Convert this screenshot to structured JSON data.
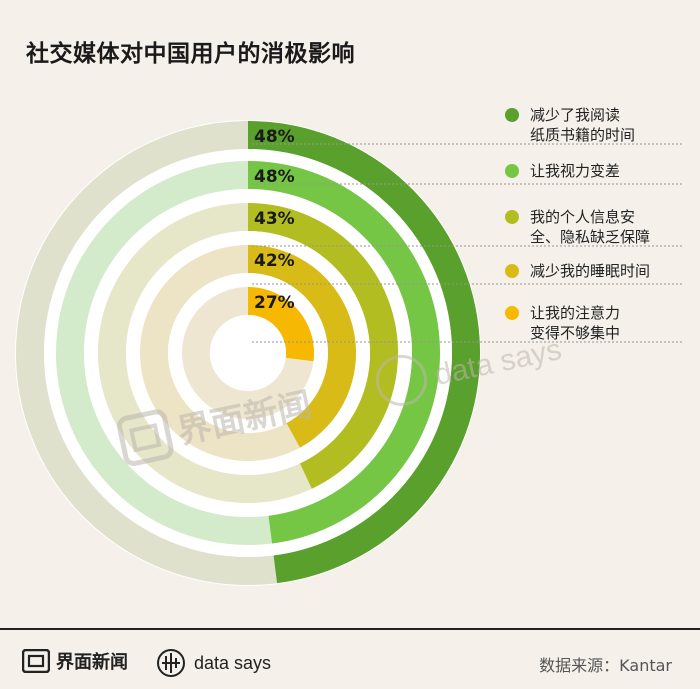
{
  "title": "社交媒体对中国用户的消极影响",
  "chart_data": {
    "type": "radial-bar",
    "unit": "%",
    "series": [
      {
        "label_lines": [
          "减少了我阅读",
          "纸质书籍的时间"
        ],
        "value": 48,
        "label": "48%",
        "color": "#5aa02c",
        "light": "#dfe1cc"
      },
      {
        "label_lines": [
          "让我视力变差"
        ],
        "value": 48,
        "label": "48%",
        "color": "#76c645",
        "light": "#d3eacb"
      },
      {
        "label_lines": [
          "我的个人信息安",
          "全、隐私缺乏保障"
        ],
        "value": 43,
        "label": "43%",
        "color": "#b2bd22",
        "light": "#e6e6c9"
      },
      {
        "label_lines": [
          "减少我的睡眠时间"
        ],
        "value": 42,
        "label": "42%",
        "color": "#d8bb16",
        "light": "#ece4c4"
      },
      {
        "label_lines": [
          "让我的注意力",
          "变得不够集中"
        ],
        "value": 27,
        "label": "27%",
        "color": "#f6b800",
        "light": "#eee6d0"
      }
    ]
  },
  "watermark": {
    "brand": "界面新闻",
    "ds": "data says"
  },
  "footer": {
    "brand": "界面新闻",
    "ds": "data says",
    "source": "数据来源：Kantar"
  }
}
